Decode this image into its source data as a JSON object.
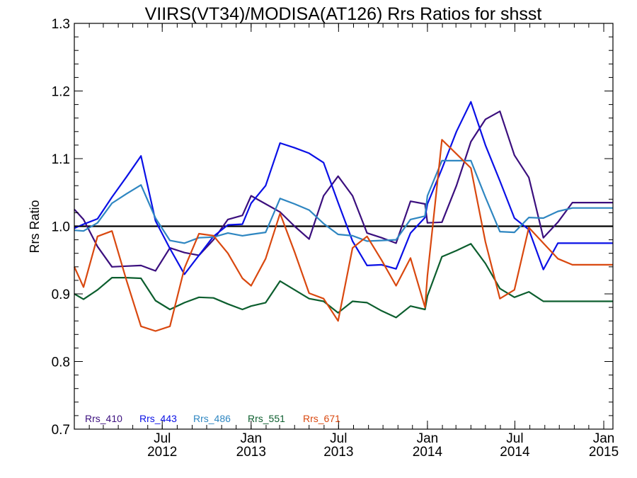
{
  "chart_data": {
    "type": "line",
    "title": "VIIRS(VT34)/MODISA(AT126)  Rrs Ratios for shsst",
    "xlabel": "",
    "ylabel": "Rrs Ratio",
    "xlim": [
      "2012-01-01",
      "2015-01-20"
    ],
    "ylim": [
      0.7,
      1.3
    ],
    "yticks": [
      {
        "value": 0.7,
        "label": "0.7"
      },
      {
        "value": 0.8,
        "label": "0.8"
      },
      {
        "value": 0.9,
        "label": "0.9"
      },
      {
        "value": 1.0,
        "label": "1.0"
      },
      {
        "value": 1.1,
        "label": "1.1"
      },
      {
        "value": 1.2,
        "label": "1.2"
      },
      {
        "value": 1.3,
        "label": "1.3"
      }
    ],
    "xticks": [
      {
        "date": "2012-07-01",
        "month": "Jul",
        "year": "2012"
      },
      {
        "date": "2013-01-01",
        "month": "Jan",
        "year": "2013"
      },
      {
        "date": "2013-07-01",
        "month": "Jul",
        "year": "2013"
      },
      {
        "date": "2014-01-01",
        "month": "Jan",
        "year": "2014"
      },
      {
        "date": "2014-07-01",
        "month": "Jul",
        "year": "2014"
      },
      {
        "date": "2015-01-01",
        "month": "Jan",
        "year": "2015"
      }
    ],
    "reference_line": 1.0,
    "legend_position": "bottom-left",
    "grid": false,
    "x": [
      "2012-01-01",
      "2012-01-20",
      "2012-02-18",
      "2012-03-19",
      "2012-04-18",
      "2012-05-18",
      "2012-06-17",
      "2012-07-17",
      "2012-08-16",
      "2012-09-15",
      "2012-10-15",
      "2012-11-14",
      "2012-12-14",
      "2013-01-01",
      "2013-01-31",
      "2013-03-02",
      "2013-04-01",
      "2013-05-01",
      "2013-05-31",
      "2013-06-30",
      "2013-07-30",
      "2013-08-29",
      "2013-09-28",
      "2013-10-28",
      "2013-11-27",
      "2013-12-27",
      "2014-01-01",
      "2014-01-31",
      "2014-03-02",
      "2014-04-01",
      "2014-05-01",
      "2014-05-31",
      "2014-06-30",
      "2014-07-30",
      "2014-08-29",
      "2014-09-28",
      "2014-10-28",
      "2014-11-27",
      "2014-12-27",
      "2015-01-01",
      "2015-01-20"
    ],
    "series": [
      {
        "name": "Rrs_410",
        "color": "#3b0f7e",
        "values": [
          1.025,
          1.01,
          0.97,
          0.94,
          0.941,
          0.942,
          0.934,
          0.968,
          0.961,
          0.957,
          0.98,
          1.01,
          1.016,
          1.045,
          1.033,
          1.021,
          1.0,
          0.981,
          1.045,
          1.074,
          1.045,
          0.99,
          0.983,
          0.975,
          1.037,
          1.033,
          1.005,
          1.006,
          1.06,
          1.125,
          1.158,
          1.17,
          1.105,
          1.072,
          0.983,
          1.006,
          1.035,
          1.035,
          1.035,
          1.035,
          1.035
        ]
      },
      {
        "name": "Rrs_443",
        "color": "#0a10e6",
        "values": [
          0.997,
          1.003,
          1.011,
          1.043,
          1.073,
          1.104,
          1.008,
          0.967,
          0.929,
          0.957,
          0.985,
          1.002,
          1.003,
          1.034,
          1.06,
          1.123,
          1.116,
          1.108,
          1.094,
          1.035,
          0.978,
          0.942,
          0.943,
          0.937,
          0.99,
          1.013,
          1.033,
          1.085,
          1.14,
          1.184,
          1.12,
          1.067,
          1.012,
          0.995,
          0.936,
          0.975,
          0.975,
          0.975,
          0.975,
          0.975,
          0.975
        ]
      },
      {
        "name": "Rrs_486",
        "color": "#2e86c1",
        "values": [
          0.994,
          0.993,
          1.005,
          1.034,
          1.048,
          1.061,
          1.012,
          0.979,
          0.975,
          0.983,
          0.984,
          0.99,
          0.986,
          0.988,
          0.991,
          1.041,
          1.033,
          1.024,
          1.004,
          0.988,
          0.986,
          0.978,
          0.979,
          0.98,
          1.01,
          1.015,
          1.045,
          1.097,
          1.097,
          1.097,
          1.043,
          0.992,
          0.991,
          1.013,
          1.012,
          1.022,
          1.027,
          1.027,
          1.027,
          1.027,
          1.027
        ]
      },
      {
        "name": "Rrs_551",
        "color": "#0c5e2e",
        "values": [
          0.9,
          0.892,
          0.906,
          0.924,
          0.924,
          0.923,
          0.89,
          0.877,
          0.887,
          0.895,
          0.894,
          0.885,
          0.877,
          0.882,
          0.887,
          0.919,
          0.906,
          0.893,
          0.889,
          0.872,
          0.889,
          0.887,
          0.875,
          0.865,
          0.882,
          0.877,
          0.897,
          0.955,
          0.964,
          0.974,
          0.945,
          0.908,
          0.895,
          0.903,
          0.889,
          0.889,
          0.889,
          0.889,
          0.889,
          0.889,
          0.889
        ]
      },
      {
        "name": "Rrs_671",
        "color": "#d9480f",
        "values": [
          0.94,
          0.91,
          0.985,
          0.993,
          0.92,
          0.852,
          0.845,
          0.852,
          0.938,
          0.989,
          0.986,
          0.96,
          0.923,
          0.912,
          0.952,
          1.019,
          0.962,
          0.901,
          0.893,
          0.86,
          0.968,
          0.985,
          0.95,
          0.912,
          0.953,
          0.88,
          0.927,
          1.128,
          1.107,
          1.086,
          0.977,
          0.893,
          0.906,
          0.998,
          0.975,
          0.952,
          0.943,
          0.943,
          0.943,
          0.943,
          0.943
        ]
      }
    ]
  }
}
